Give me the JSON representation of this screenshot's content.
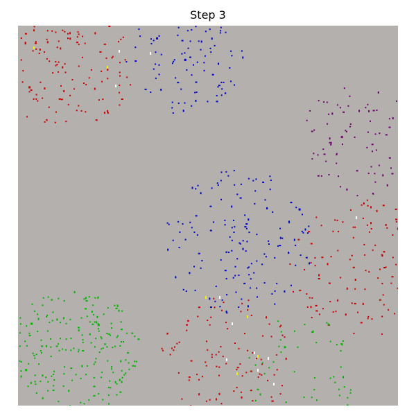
{
  "title": "Step 3",
  "colors": {
    "background": "#b3b0ae",
    "red": "#c80000",
    "blue": "#0000c8",
    "purple": "#6e006e",
    "green": "#00b400",
    "white": "#ffffff",
    "yellow": "#f0f000"
  }
}
